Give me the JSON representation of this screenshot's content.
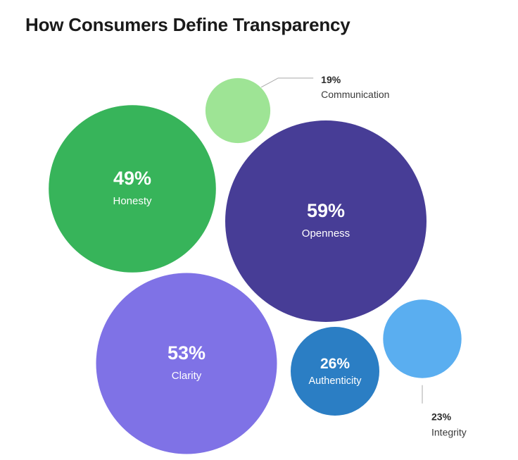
{
  "chart_data": {
    "type": "bubble",
    "title": "How Consumers Define Transparency",
    "unit": "%",
    "series": [
      {
        "name": "Openness",
        "value": 59,
        "color": "#473d96",
        "label_position": "inside"
      },
      {
        "name": "Clarity",
        "value": 53,
        "color": "#7f72e6",
        "label_position": "inside"
      },
      {
        "name": "Honesty",
        "value": 49,
        "color": "#37b45a",
        "label_position": "inside"
      },
      {
        "name": "Authenticity",
        "value": 26,
        "color": "#2b7ec4",
        "label_position": "inside"
      },
      {
        "name": "Integrity",
        "value": 23,
        "color": "#5aaef0",
        "label_position": "outside-below"
      },
      {
        "name": "Communication",
        "value": 19,
        "color": "#9ee495",
        "label_position": "outside-right"
      }
    ]
  }
}
